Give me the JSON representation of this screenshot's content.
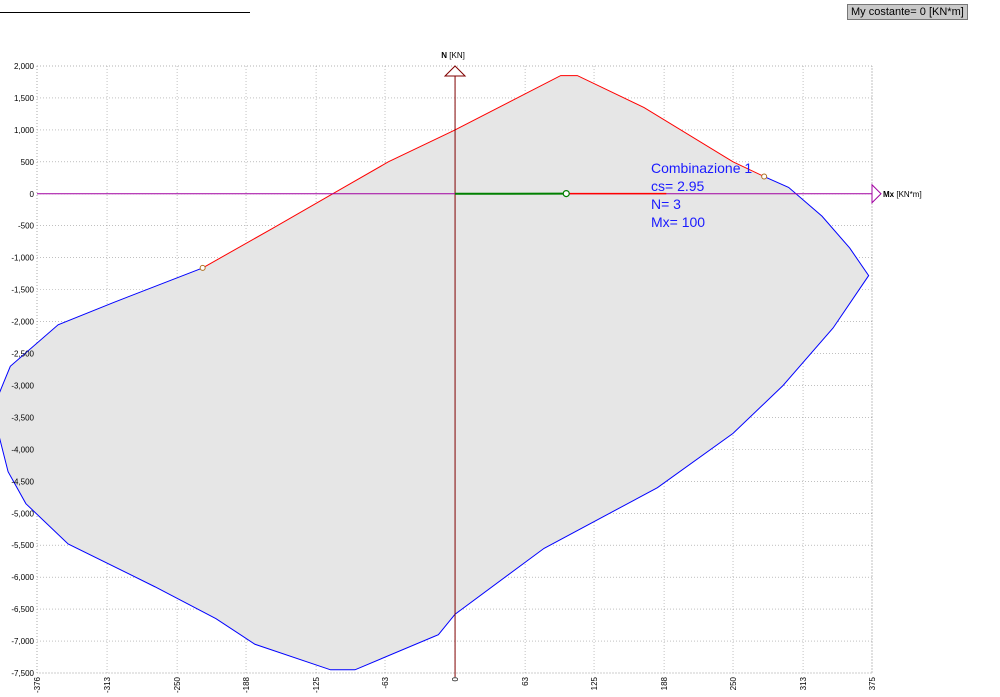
{
  "header": {
    "constant_label": "My costante= 0  [KN*m]"
  },
  "chart_data": {
    "type": "line",
    "title": "",
    "xlabel": "Mx",
    "xlabel_unit": "[KN*m]",
    "ylabel": "N",
    "ylabel_unit": "[KN]",
    "xlim": [
      -376,
      375
    ],
    "ylim": [
      -7500,
      2000
    ],
    "x_ticks": [
      -376,
      -313,
      -250,
      -188,
      -125,
      -63,
      0,
      63,
      125,
      188,
      250,
      313,
      375
    ],
    "y_ticks": [
      2000,
      1500,
      1000,
      500,
      0,
      -500,
      -1000,
      -1500,
      -2000,
      -2500,
      -3000,
      -3500,
      -4000,
      -4500,
      -5000,
      -5500,
      -6000,
      -6500,
      -7000,
      -7500
    ],
    "y_tick_labels": [
      "2,000",
      "1,500",
      "1,000",
      "500",
      "0",
      "-500",
      "-1,000",
      "-1,500",
      "-2,000",
      "-2,500",
      "-3,000",
      "-3,500",
      "-4,000",
      "-4,500",
      "-5,000",
      "-5,500",
      "-6,000",
      "-6,500",
      "-7,000",
      "-7,500"
    ],
    "grid": true,
    "series": [
      {
        "role": "domain-boundary-compression",
        "color": "#ff0000",
        "points": [
          [
            -227,
            -1160
          ],
          [
            -165,
            -550
          ],
          [
            -105,
            50
          ],
          [
            -60,
            500
          ],
          [
            0,
            1000
          ],
          [
            95,
            1850
          ],
          [
            110,
            1850
          ],
          [
            170,
            1350
          ],
          [
            250,
            500
          ],
          [
            278,
            270
          ]
        ]
      },
      {
        "role": "domain-boundary-tension",
        "color": "#0000ff",
        "points": [
          [
            278,
            270
          ],
          [
            300,
            100
          ],
          [
            330,
            -350
          ],
          [
            355,
            -850
          ],
          [
            372,
            -1280
          ],
          [
            340,
            -2100
          ],
          [
            295,
            -3000
          ],
          [
            250,
            -3750
          ],
          [
            182,
            -4600
          ],
          [
            80,
            -5550
          ],
          [
            0,
            -6580
          ],
          [
            -15,
            -6900
          ],
          [
            -90,
            -7450
          ],
          [
            -112,
            -7450
          ],
          [
            -180,
            -7050
          ],
          [
            -215,
            -6650
          ],
          [
            -270,
            -6150
          ],
          [
            -348,
            -5480
          ],
          [
            -386,
            -4850
          ],
          [
            -402,
            -4350
          ],
          [
            -410,
            -3800
          ],
          [
            -413,
            -3250
          ],
          [
            -400,
            -2700
          ],
          [
            -357,
            -2050
          ],
          [
            -307,
            -1700
          ],
          [
            -227,
            -1160
          ]
        ]
      }
    ],
    "load_path": {
      "color_origin_segment": "#008000",
      "color_extension": "#ff0000",
      "origin": [
        0,
        0
      ],
      "point": [
        100,
        3
      ],
      "end": [
        190,
        3
      ]
    },
    "markers": [
      {
        "x": -227,
        "y": -1160,
        "color": "#b07020"
      },
      {
        "x": 278,
        "y": 270,
        "color": "#b07020"
      }
    ],
    "horizontal_reference": {
      "y": 0,
      "color": "#a000a0"
    },
    "vertical_reference": {
      "x": 0,
      "color": "#800000"
    },
    "annotation": {
      "lines": [
        "Combinazione 1",
        "cs= 2.95",
        "N= 3",
        "Mx= 100"
      ],
      "color": "#1a1aff"
    }
  }
}
